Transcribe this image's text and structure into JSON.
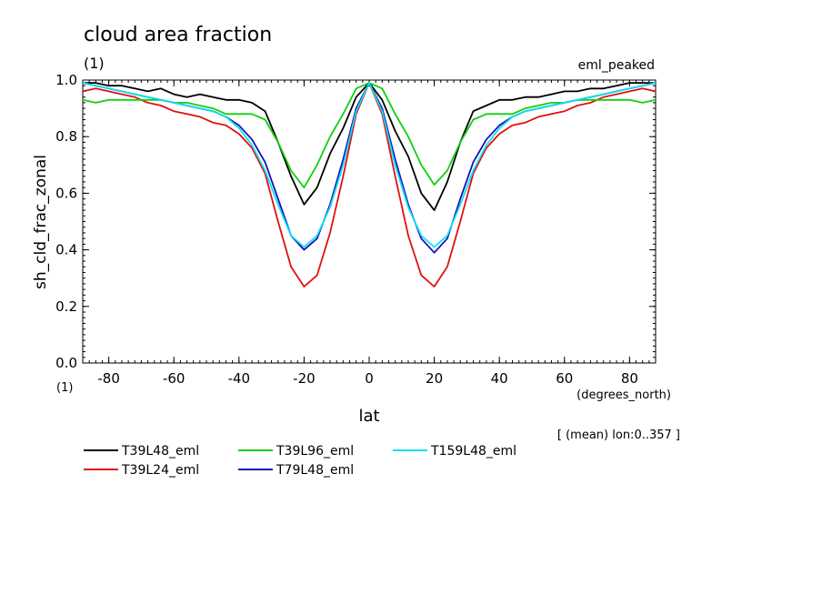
{
  "chart_data": {
    "type": "line",
    "title": "cloud area fraction",
    "title_units": "(1)",
    "experiment": "eml_peaked",
    "ylabel": "sh_cld_frac_zonal",
    "yunits": "(1)",
    "xlabel": "lat",
    "xunits": "(degrees_north)",
    "averaging_note": "[ (mean) lon:0..357 ]",
    "xlim": [
      -88,
      88
    ],
    "ylim": [
      0.0,
      1.0
    ],
    "x_ticks": [
      -80,
      -60,
      -40,
      -20,
      0,
      20,
      40,
      60,
      80
    ],
    "y_ticks": [
      0.0,
      0.2,
      0.4,
      0.6,
      0.8,
      1.0
    ],
    "grid": false,
    "legend_position": "bottom",
    "x": [
      -88,
      -84,
      -80,
      -76,
      -72,
      -68,
      -64,
      -60,
      -56,
      -52,
      -48,
      -44,
      -40,
      -36,
      -32,
      -28,
      -24,
      -20,
      -16,
      -12,
      -8,
      -4,
      0,
      4,
      8,
      12,
      16,
      20,
      24,
      28,
      32,
      36,
      40,
      44,
      48,
      52,
      56,
      60,
      64,
      68,
      72,
      76,
      80,
      84,
      88
    ],
    "series": [
      {
        "name": "T39L48_eml",
        "color": "#000000",
        "values": [
          0.99,
          0.99,
          0.98,
          0.98,
          0.97,
          0.96,
          0.97,
          0.95,
          0.94,
          0.95,
          0.94,
          0.93,
          0.93,
          0.92,
          0.89,
          0.78,
          0.66,
          0.56,
          0.62,
          0.74,
          0.83,
          0.94,
          0.99,
          0.93,
          0.82,
          0.73,
          0.6,
          0.54,
          0.64,
          0.78,
          0.89,
          0.91,
          0.93,
          0.93,
          0.94,
          0.94,
          0.95,
          0.96,
          0.96,
          0.97,
          0.97,
          0.98,
          0.99,
          0.99,
          0.99
        ]
      },
      {
        "name": "T39L24_eml",
        "color": "#e01010",
        "values": [
          0.96,
          0.97,
          0.96,
          0.95,
          0.94,
          0.92,
          0.91,
          0.89,
          0.88,
          0.87,
          0.85,
          0.84,
          0.81,
          0.76,
          0.67,
          0.5,
          0.34,
          0.27,
          0.31,
          0.46,
          0.66,
          0.88,
          0.99,
          0.88,
          0.66,
          0.45,
          0.31,
          0.27,
          0.34,
          0.5,
          0.67,
          0.76,
          0.81,
          0.84,
          0.85,
          0.87,
          0.88,
          0.89,
          0.91,
          0.92,
          0.94,
          0.95,
          0.96,
          0.97,
          0.96
        ]
      },
      {
        "name": "T39L96_eml",
        "color": "#10d010",
        "values": [
          0.93,
          0.92,
          0.93,
          0.93,
          0.93,
          0.93,
          0.93,
          0.92,
          0.92,
          0.91,
          0.9,
          0.88,
          0.88,
          0.88,
          0.86,
          0.78,
          0.68,
          0.62,
          0.7,
          0.8,
          0.88,
          0.97,
          0.99,
          0.97,
          0.88,
          0.8,
          0.7,
          0.63,
          0.68,
          0.78,
          0.86,
          0.88,
          0.88,
          0.88,
          0.9,
          0.91,
          0.92,
          0.92,
          0.93,
          0.93,
          0.93,
          0.93,
          0.93,
          0.92,
          0.93
        ]
      },
      {
        "name": "T79L48_eml",
        "color": "#1010c0",
        "values": [
          0.99,
          0.98,
          0.97,
          0.96,
          0.95,
          0.94,
          0.93,
          0.92,
          0.91,
          0.9,
          0.89,
          0.87,
          0.84,
          0.79,
          0.71,
          0.58,
          0.45,
          0.4,
          0.44,
          0.56,
          0.72,
          0.9,
          0.99,
          0.9,
          0.72,
          0.56,
          0.44,
          0.39,
          0.44,
          0.58,
          0.71,
          0.79,
          0.84,
          0.87,
          0.89,
          0.9,
          0.91,
          0.92,
          0.93,
          0.94,
          0.95,
          0.96,
          0.97,
          0.98,
          0.99
        ]
      },
      {
        "name": "T159L48_eml",
        "color": "#10e0f0",
        "values": [
          0.99,
          0.98,
          0.97,
          0.96,
          0.95,
          0.94,
          0.93,
          0.92,
          0.91,
          0.9,
          0.89,
          0.87,
          0.83,
          0.77,
          0.68,
          0.56,
          0.45,
          0.41,
          0.45,
          0.55,
          0.7,
          0.89,
          0.99,
          0.89,
          0.7,
          0.55,
          0.45,
          0.41,
          0.45,
          0.56,
          0.68,
          0.77,
          0.83,
          0.87,
          0.89,
          0.9,
          0.91,
          0.92,
          0.93,
          0.94,
          0.95,
          0.96,
          0.97,
          0.98,
          0.99
        ]
      }
    ]
  }
}
